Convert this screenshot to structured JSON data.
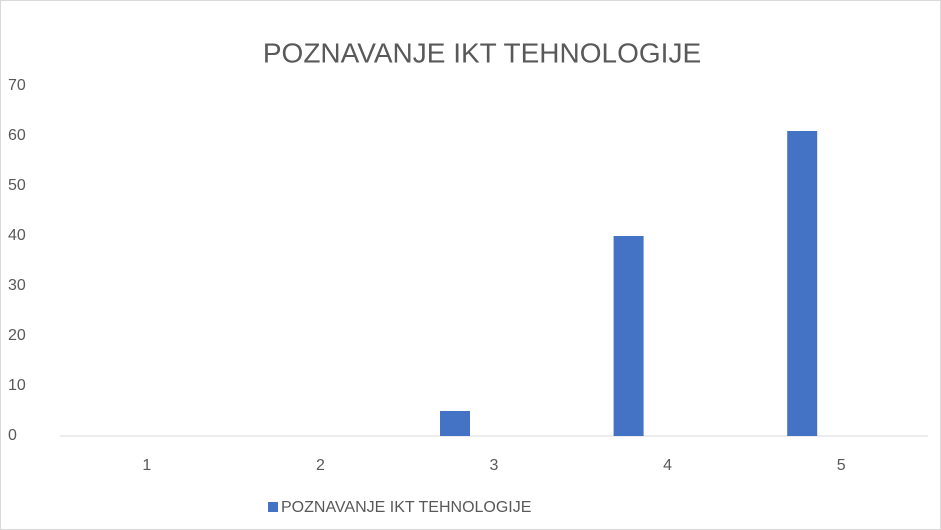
{
  "chart_data": {
    "type": "bar",
    "title": "POZNAVANJE IKT TEHNOLOGIJE",
    "categories": [
      "1",
      "2",
      "3",
      "4",
      "5"
    ],
    "series": [
      {
        "name": "POZNAVANJE IKT TEHNOLOGIJE",
        "color": "#4472c4",
        "values": [
          0,
          0,
          5,
          40,
          61
        ]
      }
    ],
    "ylim": [
      0,
      70
    ],
    "yticks": [
      0,
      10,
      20,
      30,
      40,
      50,
      60,
      70
    ],
    "grid": false,
    "legend": "bottom"
  }
}
